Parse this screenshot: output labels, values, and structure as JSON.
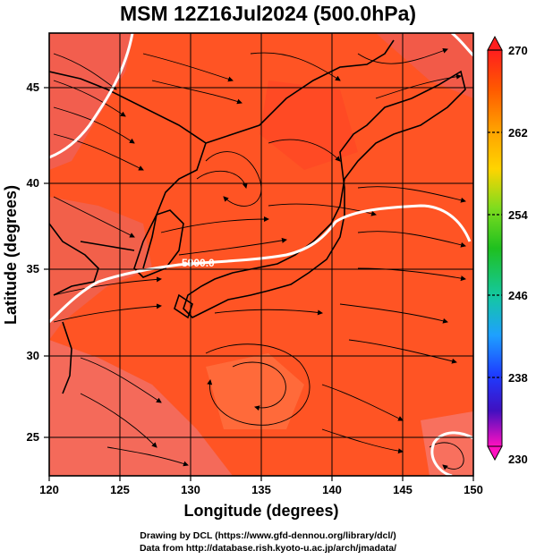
{
  "title": "MSM 12Z16Jul2024 (500.0hPa)",
  "xlabel": "Longitude (degrees)",
  "ylabel": "Latitude  (degrees)",
  "x_ticks": [
    "120",
    "125",
    "130",
    "135",
    "140",
    "145",
    "150"
  ],
  "y_ticks": [
    "25",
    "30",
    "35",
    "40",
    "45"
  ],
  "colorbar_ticks": [
    "270",
    "262",
    "254",
    "246",
    "238",
    "230"
  ],
  "contour_label": "5900.0",
  "credit_line1": "Drawing by DCL (https://www.gfd-dennou.org/library/dcl/)",
  "credit_line2": "Data from http://database.rish.kyoto-u.ac.jp/arch/jmadata/",
  "map": {
    "lon_range": [
      120,
      150
    ],
    "lat_range": [
      22.5,
      48
    ],
    "field_colors": {
      "warm": "#ff4a1e",
      "mid": "#ff6628",
      "cool": "#f26a6a",
      "land_line": "#000000",
      "contour": "#ffffff"
    },
    "colorbar_colors": [
      "#ff1e1e",
      "#ff7a00",
      "#ffd400",
      "#7ddc1f",
      "#1fc01f",
      "#14c8a0",
      "#1ea0ff",
      "#1e3cff",
      "#2020c0",
      "#b000d8",
      "#ff10c0"
    ]
  }
}
